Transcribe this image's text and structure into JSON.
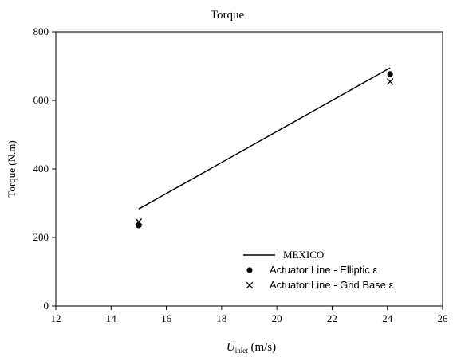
{
  "chart_data": {
    "type": "line",
    "title": "Torque",
    "xlabel": {
      "symbol": "U",
      "subscript": "inlet",
      "unit": " (m/s)"
    },
    "ylabel": "Torque (N.m)",
    "xlim": [
      12,
      26
    ],
    "ylim": [
      0,
      800
    ],
    "xticks": [
      12,
      14,
      16,
      18,
      20,
      22,
      24,
      26
    ],
    "yticks": [
      0,
      200,
      400,
      600,
      800
    ],
    "grid": false,
    "legend_position": "bottom-right",
    "series": [
      {
        "name": "MEXICO",
        "marker": "line",
        "color": "#000000",
        "x": [
          15,
          24.1
        ],
        "y": [
          283,
          695
        ]
      },
      {
        "name": "Actuator Line - Elliptic ε",
        "marker": "dot",
        "color": "#000000",
        "x": [
          15,
          24.1
        ],
        "y": [
          235,
          677
        ]
      },
      {
        "name": "Actuator Line - Grid Base ε",
        "marker": "cross",
        "color": "#000000",
        "x": [
          15,
          24.1
        ],
        "y": [
          246,
          655
        ]
      }
    ]
  }
}
